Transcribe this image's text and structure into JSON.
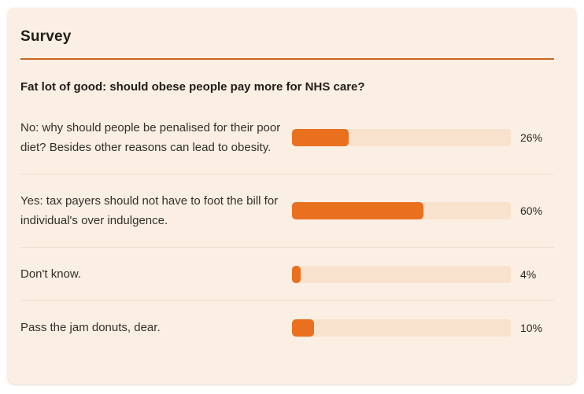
{
  "colors": {
    "accent": "#e8701f",
    "rule": "#c9661f",
    "track": "#f9e2cd",
    "card-bg": "#fbeee3",
    "row-divider": "#eee0d2"
  },
  "card": {
    "title": "Survey",
    "question": "Fat lot of good: should obese people pay more for NHS care?",
    "options": [
      {
        "label": "No: why should people be penalised for their poor diet? Besides other reasons can lead to obesity.",
        "percent": 26,
        "percent_label": "26%"
      },
      {
        "label": "Yes: tax payers should not have to foot the bill for individual's over indulgence.",
        "percent": 60,
        "percent_label": "60%"
      },
      {
        "label": "Don't know.",
        "percent": 4,
        "percent_label": "4%"
      },
      {
        "label": "Pass the jam donuts, dear.",
        "percent": 10,
        "percent_label": "10%"
      }
    ]
  },
  "chart_data": {
    "type": "bar",
    "orientation": "horizontal",
    "title": "Survey",
    "subtitle": "Fat lot of good: should obese people pay more for NHS care?",
    "categories": [
      "No: why should people be penalised for their poor diet? Besides other reasons can lead to obesity.",
      "Yes: tax payers should not have to foot the bill for individual's over indulgence.",
      "Don't know.",
      "Pass the jam donuts, dear."
    ],
    "values": [
      26,
      60,
      4,
      10
    ],
    "unit": "%",
    "xlabel": "",
    "ylabel": "",
    "xlim": [
      0,
      100
    ],
    "grid": false,
    "legend": false,
    "bar_color": "#e8701f",
    "track_color": "#f9e2cd"
  }
}
